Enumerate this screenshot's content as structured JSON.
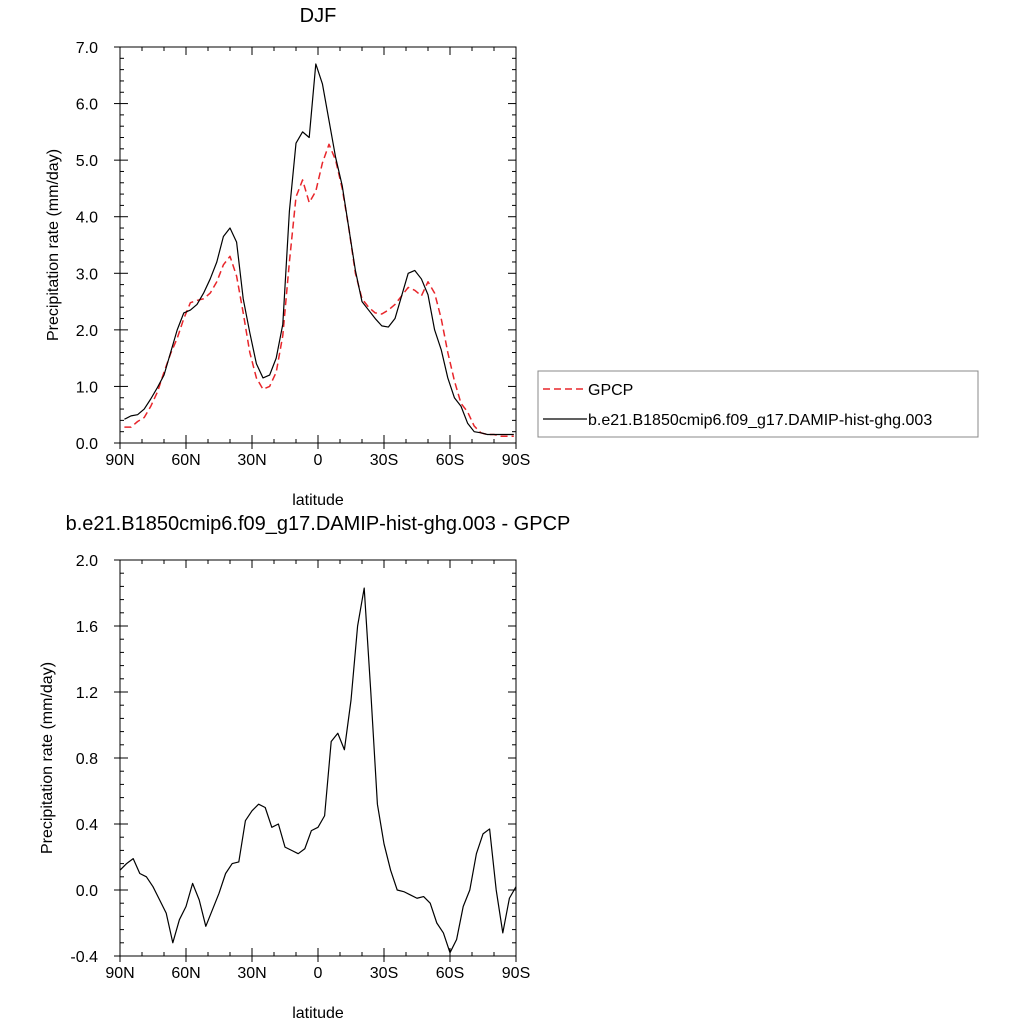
{
  "colors": {
    "gpcp": "#e8262b",
    "model": "#000000",
    "axis": "#000000",
    "background": "#ffffff"
  },
  "chart_data": [
    {
      "type": "line",
      "title": "DJF",
      "xlabel": "latitude",
      "ylabel": "Precipitation rate (mm/day)",
      "xlim": [
        -90,
        90
      ],
      "ylim": [
        0.0,
        7.0
      ],
      "xticks": [
        -90,
        -60,
        -30,
        0,
        30,
        60,
        90
      ],
      "xtick_labels": [
        "90N",
        "60N",
        "30N",
        "0",
        "30S",
        "60S",
        "90S"
      ],
      "yticks": [
        0,
        1,
        2,
        3,
        4,
        5,
        6,
        7
      ],
      "ytick_labels": [
        "0.0",
        "1.0",
        "2.0",
        "3.0",
        "4.0",
        "5.0",
        "6.0",
        "7.0"
      ],
      "legend_position": "outside-right",
      "series": [
        {
          "name": "GPCP",
          "style": "dashed",
          "color": "#e8262b",
          "x": [
            -88,
            -85,
            -82,
            -79,
            -76,
            -73,
            -70,
            -67,
            -64,
            -61,
            -58,
            -55,
            -52,
            -49,
            -46,
            -43,
            -40,
            -37,
            -34,
            -31,
            -28,
            -25,
            -22,
            -19,
            -16,
            -13,
            -10,
            -7,
            -4,
            -1,
            2,
            5,
            8,
            11,
            14,
            17,
            20,
            23,
            26,
            29,
            32,
            35,
            38,
            41,
            44,
            47,
            50,
            53,
            56,
            59,
            62,
            65,
            68,
            71,
            74,
            77,
            80,
            83,
            86,
            89
          ],
          "y": [
            0.28,
            0.28,
            0.38,
            0.45,
            0.65,
            0.9,
            1.25,
            1.58,
            1.85,
            2.2,
            2.48,
            2.52,
            2.55,
            2.65,
            2.85,
            3.15,
            3.3,
            2.95,
            2.3,
            1.6,
            1.15,
            0.95,
            1.0,
            1.25,
            1.9,
            3.2,
            4.35,
            4.65,
            4.25,
            4.45,
            4.95,
            5.28,
            5.0,
            4.5,
            3.8,
            3.0,
            2.55,
            2.4,
            2.3,
            2.28,
            2.35,
            2.45,
            2.6,
            2.75,
            2.7,
            2.6,
            2.85,
            2.65,
            2.2,
            1.6,
            1.1,
            0.7,
            0.55,
            0.3,
            0.18,
            0.15,
            0.15,
            0.12,
            0.12,
            0.12
          ]
        },
        {
          "name": "b.e21.B1850cmip6.f09_g17.DAMIP-hist-ghg.003",
          "style": "solid",
          "color": "#000000",
          "x": [
            -88,
            -85,
            -82,
            -79,
            -76,
            -73,
            -70,
            -67,
            -64,
            -61,
            -58,
            -55,
            -52,
            -49,
            -46,
            -43,
            -40,
            -37,
            -34,
            -31,
            -28,
            -25,
            -22,
            -19,
            -16,
            -13,
            -10,
            -7,
            -4,
            -1,
            2,
            5,
            8,
            11,
            14,
            17,
            20,
            23,
            26,
            29,
            32,
            35,
            38,
            41,
            44,
            47,
            50,
            53,
            56,
            59,
            62,
            65,
            68,
            71,
            74,
            77,
            80,
            83,
            86,
            89
          ],
          "y": [
            0.42,
            0.48,
            0.5,
            0.6,
            0.78,
            0.98,
            1.2,
            1.6,
            2.0,
            2.3,
            2.35,
            2.45,
            2.65,
            2.9,
            3.2,
            3.65,
            3.8,
            3.55,
            2.55,
            1.95,
            1.4,
            1.15,
            1.2,
            1.5,
            2.1,
            4.1,
            5.3,
            5.5,
            5.4,
            6.7,
            6.35,
            5.7,
            5.05,
            4.55,
            3.8,
            3.05,
            2.5,
            2.35,
            2.2,
            2.07,
            2.05,
            2.2,
            2.6,
            3.0,
            3.05,
            2.9,
            2.62,
            2.0,
            1.65,
            1.15,
            0.8,
            0.65,
            0.35,
            0.2,
            0.18,
            0.15,
            0.15,
            0.15,
            0.15,
            0.15
          ]
        }
      ]
    },
    {
      "type": "line",
      "title": "b.e21.B1850cmip6.f09_g17.DAMIP-hist-ghg.003 - GPCP",
      "xlabel": "latitude",
      "ylabel": "Precipitation rate (mm/day)",
      "xlim": [
        -90,
        90
      ],
      "ylim": [
        -0.4,
        2.0
      ],
      "xticks": [
        -90,
        -60,
        -30,
        0,
        30,
        60,
        90
      ],
      "xtick_labels": [
        "90N",
        "60N",
        "30N",
        "0",
        "30S",
        "60S",
        "90S"
      ],
      "yticks": [
        -0.4,
        0.0,
        0.4,
        0.8,
        1.2,
        1.6,
        2.0
      ],
      "ytick_labels": [
        "-0.4",
        "0.0",
        "0.4",
        "0.8",
        "1.2",
        "1.6",
        "2.0"
      ],
      "series": [
        {
          "style": "solid",
          "color": "#000000",
          "x": [
            -90,
            -87,
            -84,
            -81,
            -78,
            -75,
            -72,
            -69,
            -66,
            -63,
            -60,
            -57,
            -54,
            -51,
            -48,
            -45,
            -42,
            -39,
            -36,
            -33,
            -30,
            -27,
            -24,
            -21,
            -18,
            -15,
            -12,
            -9,
            -6,
            -3,
            0,
            3,
            6,
            9,
            12,
            15,
            18,
            21,
            24,
            27,
            30,
            33,
            36,
            39,
            42,
            45,
            48,
            51,
            54,
            57,
            60,
            63,
            66,
            69,
            72,
            75,
            78,
            81,
            84,
            87,
            90
          ],
          "y": [
            0.12,
            0.16,
            0.19,
            0.1,
            0.08,
            0.02,
            -0.06,
            -0.14,
            -0.32,
            -0.18,
            -0.1,
            0.04,
            -0.06,
            -0.22,
            -0.12,
            -0.02,
            0.1,
            0.16,
            0.17,
            0.42,
            0.48,
            0.52,
            0.5,
            0.38,
            0.4,
            0.26,
            0.24,
            0.22,
            0.25,
            0.36,
            0.38,
            0.45,
            0.9,
            0.95,
            0.85,
            1.15,
            1.6,
            1.83,
            1.2,
            0.52,
            0.28,
            0.12,
            0.0,
            -0.01,
            -0.03,
            -0.05,
            -0.04,
            -0.08,
            -0.2,
            -0.26,
            -0.38,
            -0.3,
            -0.1,
            0.0,
            0.22,
            0.34,
            0.37,
            0.0,
            -0.26,
            -0.05,
            0.02
          ]
        }
      ]
    }
  ]
}
